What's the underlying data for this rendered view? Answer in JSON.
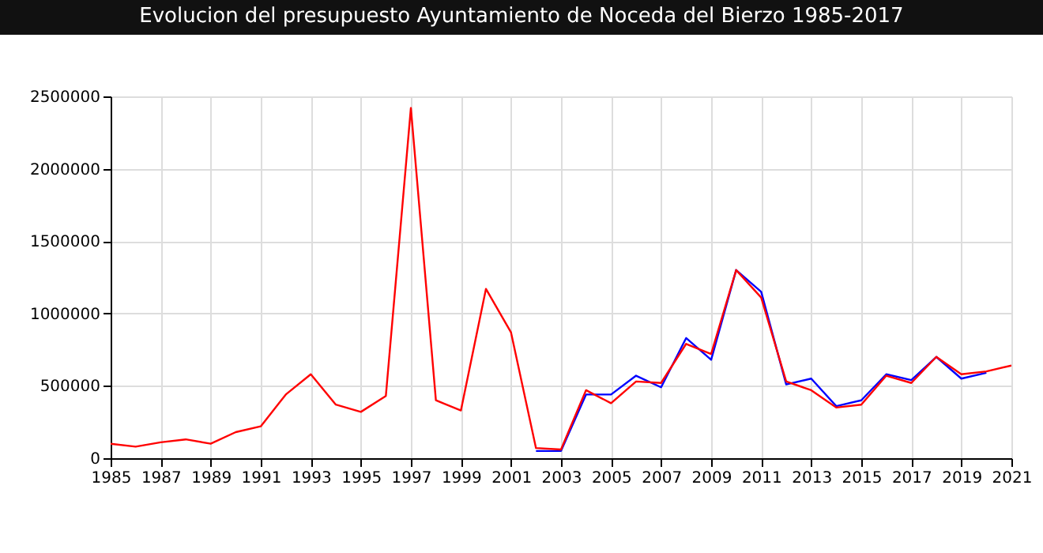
{
  "chart_data": {
    "type": "line",
    "title": "Evolucion del presupuesto Ayuntamiento de Noceda del Bierzo 1985-2017",
    "xlim": [
      1985,
      2021
    ],
    "xticks": [
      1985,
      1987,
      1989,
      1991,
      1993,
      1995,
      1997,
      1999,
      2001,
      2003,
      2005,
      2007,
      2009,
      2011,
      2013,
      2015,
      2017,
      2019,
      2021
    ],
    "ylim": [
      0,
      2500000
    ],
    "yticks": [
      0,
      500000,
      1000000,
      1500000,
      2000000,
      2500000
    ],
    "grid": true,
    "series": [
      {
        "color": "#0000ff",
        "x": [
          2002,
          2003,
          2004,
          2005,
          2006,
          2007,
          2008,
          2009,
          2010,
          2011,
          2012,
          2013,
          2014,
          2015,
          2016,
          2017,
          2018,
          2019,
          2020
        ],
        "values": [
          50000,
          50000,
          440000,
          440000,
          570000,
          490000,
          830000,
          680000,
          1300000,
          1150000,
          510000,
          550000,
          360000,
          400000,
          580000,
          540000,
          700000,
          550000,
          590000
        ]
      },
      {
        "color": "#ff0000",
        "x": [
          1985,
          1986,
          1987,
          1988,
          1989,
          1990,
          1991,
          1992,
          1993,
          1994,
          1995,
          1996,
          1997,
          1998,
          1999,
          2000,
          2001,
          2002,
          2003,
          2004,
          2005,
          2006,
          2007,
          2008,
          2009,
          2010,
          2011,
          2012,
          2013,
          2014,
          2015,
          2016,
          2017,
          2018,
          2019,
          2020,
          2021
        ],
        "values": [
          100000,
          80000,
          110000,
          130000,
          100000,
          180000,
          220000,
          440000,
          580000,
          370000,
          320000,
          430000,
          2420000,
          400000,
          330000,
          1170000,
          870000,
          70000,
          60000,
          470000,
          380000,
          530000,
          520000,
          790000,
          720000,
          1300000,
          1110000,
          530000,
          470000,
          350000,
          370000,
          570000,
          520000,
          700000,
          580000,
          600000,
          640000
        ]
      }
    ]
  }
}
